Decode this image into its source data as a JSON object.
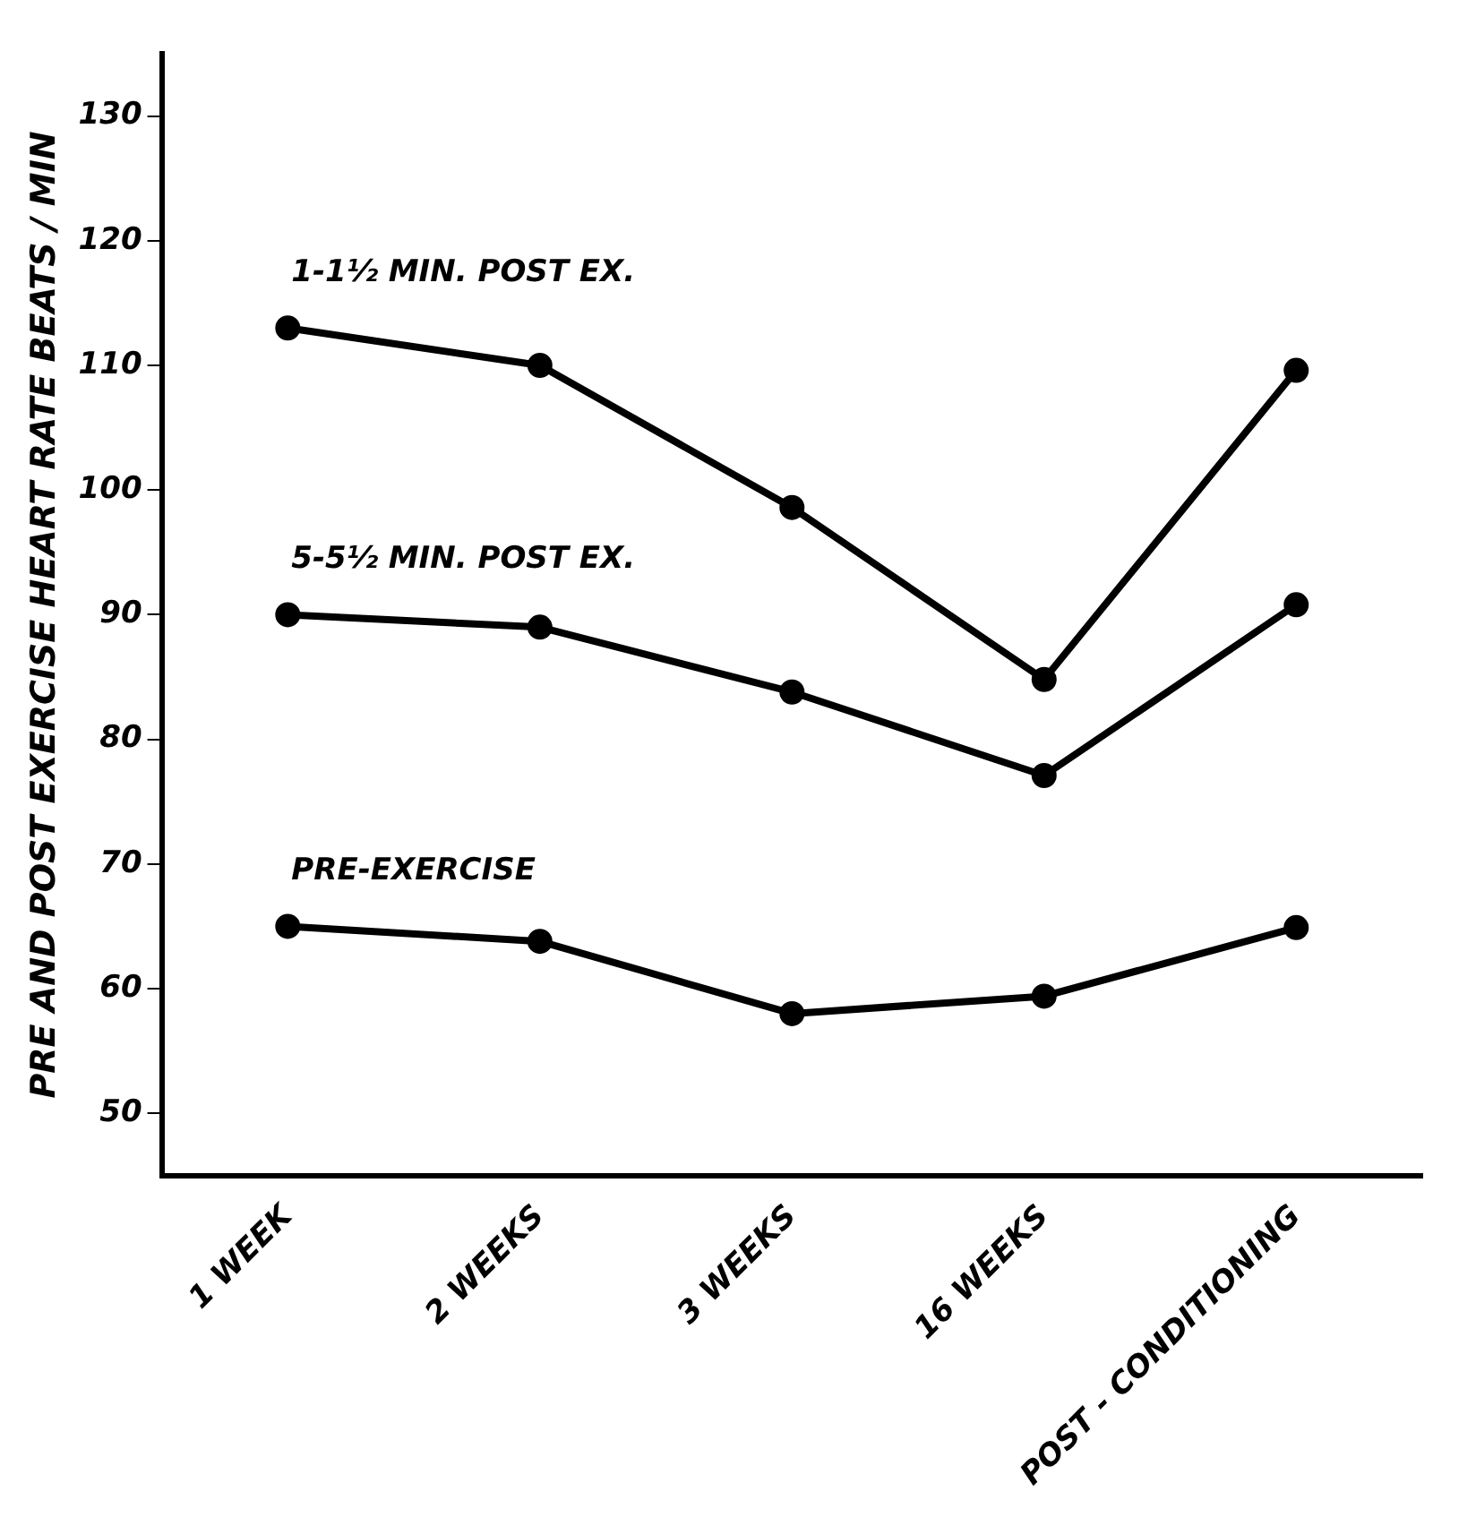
{
  "chart_data": {
    "type": "line",
    "ylabel": "PRE AND POST EXERCISE HEART RATE BEATS / MIN",
    "categories": [
      "1 WEEK",
      "2 WEEKS",
      "3 WEEKS",
      "16 WEEKS",
      "POST - CONDITIONING"
    ],
    "series": [
      {
        "name": "1-1½ MIN. POST EX.",
        "color": "#000000",
        "values": [
          113,
          110,
          98.6,
          84.8,
          109.6
        ]
      },
      {
        "name": "5-5½ MIN. POST EX.",
        "color": "#000000",
        "values": [
          90,
          89,
          83.8,
          77.1,
          90.8
        ]
      },
      {
        "name": "PRE-EXERCISE",
        "color": "#000000",
        "values": [
          65,
          63.8,
          58,
          59.4,
          64.9
        ]
      }
    ],
    "ylim": [
      45,
      135
    ],
    "yticks": [
      50,
      60,
      70,
      80,
      90,
      100,
      110,
      120,
      130
    ],
    "grid": false,
    "legend": false,
    "marker": "circle",
    "line_style": "solid"
  }
}
